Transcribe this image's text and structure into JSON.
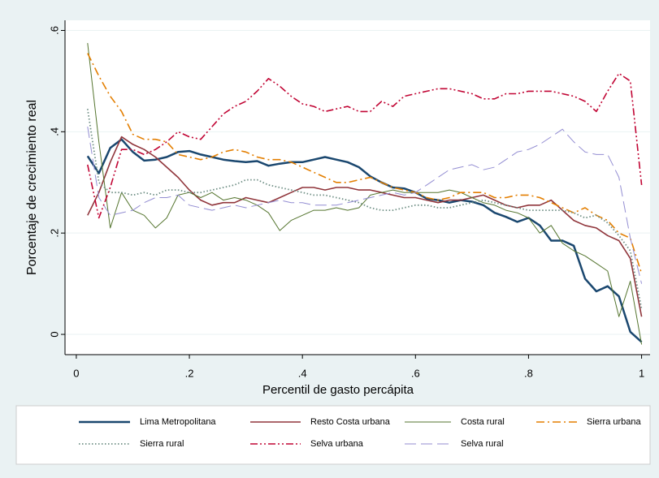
{
  "chart_data": {
    "type": "line",
    "xlabel": "Percentil de gasto percápita",
    "ylabel": "Porcentaje de crecimiento real",
    "x": [
      0.02,
      0.04,
      0.06,
      0.08,
      0.1,
      0.12,
      0.14,
      0.16,
      0.18,
      0.2,
      0.22,
      0.24,
      0.26,
      0.28,
      0.3,
      0.32,
      0.34,
      0.36,
      0.38,
      0.4,
      0.42,
      0.44,
      0.46,
      0.48,
      0.5,
      0.52,
      0.54,
      0.56,
      0.58,
      0.6,
      0.62,
      0.64,
      0.66,
      0.68,
      0.7,
      0.72,
      0.74,
      0.76,
      0.78,
      0.8,
      0.82,
      0.84,
      0.86,
      0.88,
      0.9,
      0.92,
      0.94,
      0.96,
      0.98,
      1.0
    ],
    "xlim": [
      -0.02,
      1.015
    ],
    "xticks": [
      0,
      {
        "value": 0.2,
        "label": ".2"
      },
      {
        "value": 0.4,
        "label": ".4"
      },
      {
        "value": 0.6,
        "label": ".6"
      },
      {
        "value": 0.8,
        "label": ".8"
      },
      1
    ],
    "ylim": [
      -0.04,
      0.62
    ],
    "yticks": [
      0,
      {
        "value": 0.2,
        "label": ".2"
      },
      {
        "value": 0.4,
        "label": ".4"
      },
      {
        "value": 0.6,
        "label": ".6"
      }
    ],
    "grid": true,
    "series": [
      {
        "name": "Lima Metropolitana",
        "color": "#1a476f",
        "values": [
          0.352,
          0.318,
          0.368,
          0.385,
          0.36,
          0.343,
          0.345,
          0.35,
          0.36,
          0.362,
          0.355,
          0.35,
          0.345,
          0.342,
          0.34,
          0.342,
          0.333,
          0.337,
          0.34,
          0.34,
          0.345,
          0.35,
          0.345,
          0.34,
          0.33,
          0.312,
          0.3,
          0.29,
          0.288,
          0.28,
          0.268,
          0.265,
          0.26,
          0.265,
          0.262,
          0.255,
          0.24,
          0.232,
          0.222,
          0.23,
          0.215,
          0.185,
          0.185,
          0.175,
          0.11,
          0.085,
          0.095,
          0.075,
          0.005,
          -0.015
        ]
      },
      {
        "name": "Resto Costa urbana",
        "color": "#90353b",
        "values": [
          0.235,
          0.28,
          0.34,
          0.39,
          0.375,
          0.365,
          0.35,
          0.33,
          0.31,
          0.285,
          0.265,
          0.255,
          0.26,
          0.26,
          0.27,
          0.265,
          0.26,
          0.27,
          0.28,
          0.29,
          0.29,
          0.285,
          0.29,
          0.29,
          0.285,
          0.285,
          0.28,
          0.275,
          0.27,
          0.27,
          0.265,
          0.26,
          0.265,
          0.265,
          0.27,
          0.275,
          0.265,
          0.255,
          0.25,
          0.255,
          0.255,
          0.265,
          0.245,
          0.225,
          0.215,
          0.21,
          0.195,
          0.185,
          0.15,
          0.035
        ]
      },
      {
        "name": "Costa rural",
        "color": "#55752f",
        "values": [
          0.575,
          0.38,
          0.21,
          0.28,
          0.245,
          0.235,
          0.21,
          0.23,
          0.275,
          0.28,
          0.27,
          0.28,
          0.265,
          0.27,
          0.265,
          0.255,
          0.24,
          0.205,
          0.225,
          0.235,
          0.245,
          0.245,
          0.25,
          0.245,
          0.25,
          0.275,
          0.28,
          0.285,
          0.28,
          0.28,
          0.28,
          0.28,
          0.285,
          0.28,
          0.27,
          0.26,
          0.255,
          0.245,
          0.24,
          0.23,
          0.2,
          0.215,
          0.18,
          0.165,
          0.155,
          0.14,
          0.125,
          0.035,
          0.105,
          -0.02
        ]
      },
      {
        "name": "Sierra urbana",
        "color": "#e37e00",
        "values": [
          0.555,
          0.51,
          0.47,
          0.44,
          0.395,
          0.385,
          0.385,
          0.38,
          0.355,
          0.35,
          0.345,
          0.35,
          0.36,
          0.365,
          0.36,
          0.35,
          0.345,
          0.345,
          0.34,
          0.33,
          0.32,
          0.31,
          0.3,
          0.3,
          0.305,
          0.31,
          0.3,
          0.29,
          0.285,
          0.28,
          0.27,
          0.265,
          0.27,
          0.28,
          0.28,
          0.28,
          0.27,
          0.27,
          0.275,
          0.275,
          0.27,
          0.26,
          0.25,
          0.24,
          0.25,
          0.235,
          0.225,
          0.2,
          0.19,
          0.12
        ]
      },
      {
        "name": "Sierra rural",
        "color": "#6e8e84",
        "values": [
          0.445,
          0.3,
          0.28,
          0.28,
          0.275,
          0.28,
          0.275,
          0.285,
          0.285,
          0.28,
          0.28,
          0.285,
          0.29,
          0.295,
          0.305,
          0.305,
          0.295,
          0.29,
          0.285,
          0.28,
          0.275,
          0.275,
          0.27,
          0.265,
          0.26,
          0.25,
          0.245,
          0.245,
          0.25,
          0.255,
          0.255,
          0.25,
          0.25,
          0.255,
          0.26,
          0.265,
          0.26,
          0.255,
          0.25,
          0.245,
          0.245,
          0.245,
          0.245,
          0.24,
          0.23,
          0.235,
          0.22,
          0.195,
          0.165,
          0.05
        ]
      },
      {
        "name": "Selva urbana",
        "color": "#c10534",
        "values": [
          0.335,
          0.23,
          0.29,
          0.365,
          0.365,
          0.355,
          0.365,
          0.38,
          0.4,
          0.39,
          0.385,
          0.41,
          0.435,
          0.45,
          0.46,
          0.48,
          0.505,
          0.49,
          0.47,
          0.455,
          0.45,
          0.44,
          0.445,
          0.45,
          0.44,
          0.44,
          0.46,
          0.45,
          0.47,
          0.475,
          0.48,
          0.485,
          0.485,
          0.48,
          0.475,
          0.465,
          0.465,
          0.475,
          0.475,
          0.48,
          0.48,
          0.48,
          0.475,
          0.47,
          0.46,
          0.44,
          0.48,
          0.515,
          0.5,
          0.295
        ]
      },
      {
        "name": "Selva rural",
        "color": "#938dd2",
        "values": [
          0.41,
          0.27,
          0.235,
          0.24,
          0.245,
          0.26,
          0.27,
          0.27,
          0.275,
          0.255,
          0.25,
          0.245,
          0.25,
          0.255,
          0.25,
          0.255,
          0.26,
          0.265,
          0.26,
          0.26,
          0.255,
          0.255,
          0.255,
          0.26,
          0.265,
          0.27,
          0.275,
          0.28,
          0.275,
          0.28,
          0.295,
          0.31,
          0.325,
          0.33,
          0.335,
          0.325,
          0.33,
          0.345,
          0.36,
          0.365,
          0.375,
          0.39,
          0.405,
          0.38,
          0.36,
          0.355,
          0.355,
          0.31,
          0.19,
          0.1
        ]
      }
    ]
  }
}
